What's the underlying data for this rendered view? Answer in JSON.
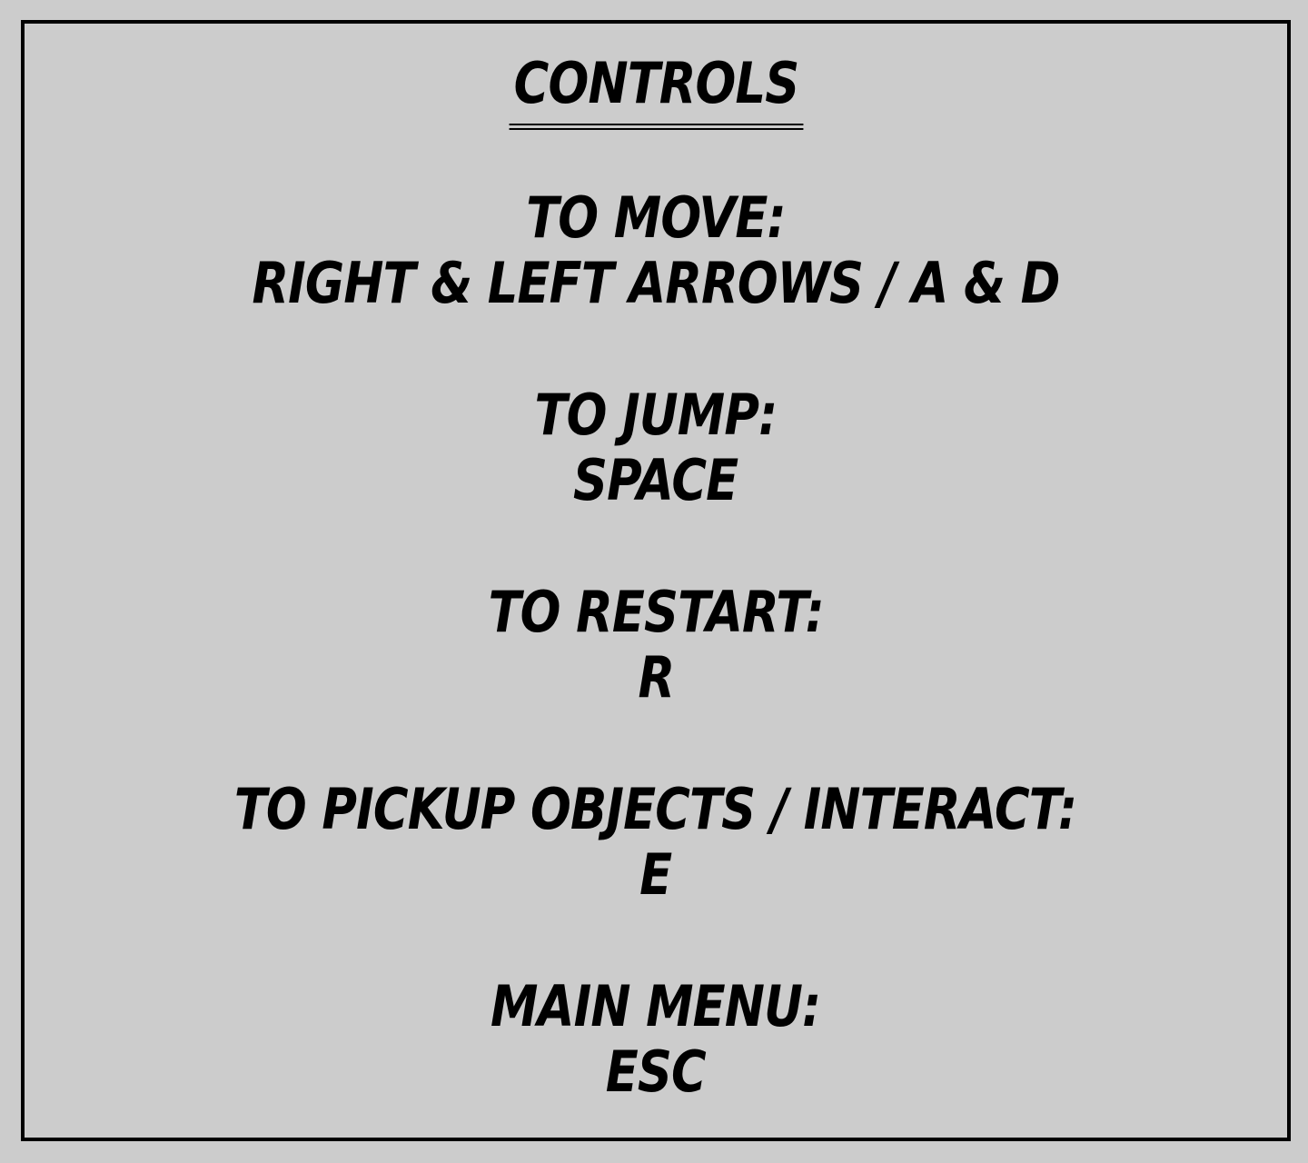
{
  "title": "CONTROLS",
  "sections": [
    {
      "label": "TO MOVE:",
      "keys": "RIGHT & LEFT ARROWS / A & D"
    },
    {
      "label": "TO JUMP:",
      "keys": "SPACE"
    },
    {
      "label": "TO RESTART:",
      "keys": "R"
    },
    {
      "label": "TO PICKUP OBJECTS / INTERACT:",
      "keys": "E"
    },
    {
      "label": "MAIN MENU:",
      "keys": "ESC"
    }
  ]
}
